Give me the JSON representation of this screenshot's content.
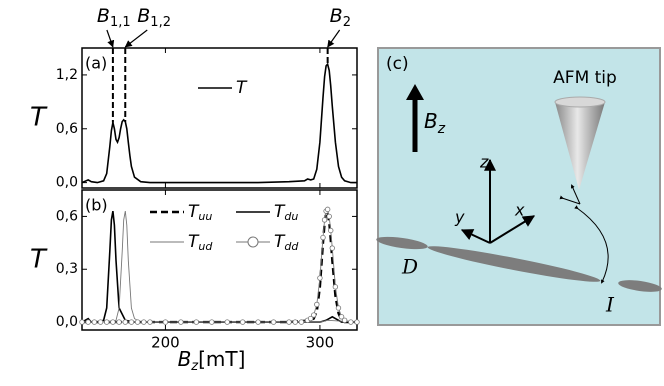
{
  "chart_data": [
    {
      "type": "line",
      "panel": "(a)",
      "ylabel": "T",
      "xlim": [
        146,
        324
      ],
      "xticks": [
        200,
        300
      ],
      "ylim": [
        -0.06,
        1.5
      ],
      "yticks": [
        {
          "value": 0,
          "label": "0,0"
        },
        {
          "value": 0.6,
          "label": "0,6"
        },
        {
          "value": 1.2,
          "label": "1,2"
        }
      ],
      "annotations": [
        {
          "text": "B",
          "sub": "1,1",
          "x": 166
        },
        {
          "text": "B",
          "sub": "1,2",
          "x": 174
        },
        {
          "text": "B",
          "sub": "2",
          "x": 305
        }
      ],
      "series": [
        {
          "name": "T",
          "color": "#000000",
          "line_style": "solid",
          "line_width": 1.6,
          "marker": "none",
          "x": [
            146,
            150,
            152,
            156,
            160,
            162,
            164,
            165,
            166,
            167,
            168,
            169,
            170,
            171,
            172,
            173,
            174,
            175,
            176,
            177,
            178,
            180,
            184,
            190,
            220,
            260,
            280,
            290,
            292,
            294,
            296,
            298,
            300,
            302,
            303,
            304,
            305,
            306,
            307,
            308,
            310,
            312,
            314,
            316,
            320,
            324
          ],
          "values": [
            0,
            0.03,
            0.01,
            0,
            0.02,
            0.1,
            0.4,
            0.58,
            0.67,
            0.6,
            0.48,
            0.45,
            0.5,
            0.6,
            0.68,
            0.7,
            0.68,
            0.6,
            0.45,
            0.3,
            0.18,
            0.06,
            0.01,
            0,
            0,
            0,
            0.01,
            0.02,
            0.04,
            0.03,
            0.04,
            0.15,
            0.45,
            0.95,
            1.18,
            1.3,
            1.32,
            1.25,
            1.08,
            0.85,
            0.45,
            0.18,
            0.06,
            0.02,
            0,
            0
          ]
        }
      ]
    },
    {
      "type": "line",
      "panel": "(b)",
      "ylabel": "T",
      "xlabel": "B",
      "xlabel_sub": "z",
      "xlabel_unit": "[mT]",
      "xlim": [
        146,
        324
      ],
      "xticks": [
        200,
        300
      ],
      "ylim": [
        -0.045,
        0.75
      ],
      "yticks": [
        {
          "value": 0,
          "label": "0,0"
        },
        {
          "value": 0.3,
          "label": "0,3"
        },
        {
          "value": 0.6,
          "label": "0,6"
        }
      ],
      "series": [
        {
          "name": "Tuu",
          "color": "#000000",
          "line_style": "dashed",
          "line_width": 2.4,
          "marker": "none",
          "x": [
            146,
            200,
            280,
            294,
            296,
            298,
            300,
            302,
            303,
            304,
            305,
            306,
            307,
            308,
            310,
            312,
            314,
            316,
            324
          ],
          "values": [
            0,
            0,
            0,
            0.01,
            0.02,
            0.06,
            0.2,
            0.45,
            0.56,
            0.62,
            0.62,
            0.57,
            0.47,
            0.35,
            0.15,
            0.05,
            0.01,
            0,
            0
          ]
        },
        {
          "name": "Tdu",
          "color": "#000000",
          "line_style": "solid",
          "line_width": 1.6,
          "marker": "none",
          "x": [
            146,
            150,
            152,
            156,
            160,
            162,
            164,
            165,
            166,
            167,
            168,
            170,
            174,
            180,
            220,
            280,
            300,
            304,
            306,
            308,
            310,
            314,
            324
          ],
          "values": [
            0,
            0.02,
            0,
            0,
            0.01,
            0.08,
            0.4,
            0.58,
            0.63,
            0.55,
            0.35,
            0.08,
            0.01,
            0,
            0,
            0,
            0,
            0.01,
            0.02,
            0.03,
            0.02,
            0,
            0
          ]
        },
        {
          "name": "Tud",
          "color": "#777777",
          "line_style": "solid",
          "line_width": 0.9,
          "marker": "none",
          "x": [
            146,
            160,
            168,
            170,
            172,
            173,
            174,
            175,
            176,
            178,
            180,
            184,
            220,
            300,
            305,
            324
          ],
          "values": [
            0,
            0,
            0.01,
            0.08,
            0.4,
            0.58,
            0.63,
            0.55,
            0.35,
            0.08,
            0.02,
            0,
            0,
            0,
            0.01,
            0
          ]
        },
        {
          "name": "Tdd",
          "color": "#777777",
          "line_style": "solid",
          "line_width": 0.9,
          "marker": "circle",
          "x": [
            146,
            150,
            154,
            158,
            162,
            166,
            170,
            174,
            178,
            182,
            186,
            190,
            200,
            210,
            220,
            230,
            240,
            250,
            260,
            270,
            280,
            284,
            288,
            292,
            294,
            296,
            298,
            300,
            302,
            303,
            304,
            305,
            306,
            307,
            308,
            310,
            312,
            314,
            316,
            320,
            324
          ],
          "values": [
            0,
            0,
            0,
            0,
            0,
            0,
            0,
            0,
            0,
            0,
            0,
            0,
            0,
            0,
            0,
            0,
            0,
            0,
            0,
            0,
            0,
            0,
            0,
            0.01,
            0.02,
            0.04,
            0.1,
            0.25,
            0.48,
            0.58,
            0.63,
            0.64,
            0.6,
            0.52,
            0.42,
            0.2,
            0.08,
            0.03,
            0.01,
            0,
            0
          ]
        }
      ]
    }
  ],
  "diagram": {
    "label": "(c)",
    "tip": "AFM tip",
    "field": "B",
    "field_sub": "z",
    "axis_z": "z",
    "axis_y": "y",
    "axis_x": "x",
    "contact_left": "D",
    "contact_right": "I"
  }
}
